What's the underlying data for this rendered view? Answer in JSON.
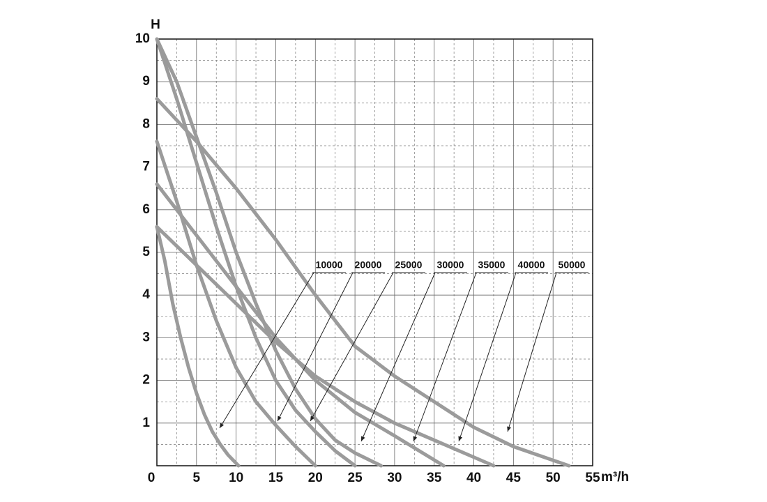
{
  "chart_data": {
    "type": "line",
    "y_label": "H",
    "x_label": "m³/h",
    "xlim": [
      0,
      55
    ],
    "ylim": [
      0,
      10
    ],
    "xticks": [
      0,
      5,
      10,
      15,
      20,
      25,
      30,
      35,
      40,
      45,
      50,
      55
    ],
    "yticks": [
      0,
      1,
      2,
      3,
      4,
      5,
      6,
      7,
      8,
      9,
      10
    ],
    "grid": true,
    "color": "#9b9b9b",
    "series": [
      {
        "name": "10000",
        "x": [
          0,
          1,
          2,
          3,
          4,
          5,
          6,
          7,
          8,
          9,
          10.3
        ],
        "values": [
          5.6,
          4.8,
          3.8,
          3.0,
          2.3,
          1.7,
          1.2,
          0.8,
          0.5,
          0.25,
          0
        ]
      },
      {
        "name": "20000",
        "x": [
          0,
          2.5,
          5,
          7.5,
          10,
          12.5,
          15,
          17.5,
          20
        ],
        "values": [
          7.6,
          6.2,
          4.7,
          3.4,
          2.3,
          1.5,
          0.95,
          0.45,
          0
        ]
      },
      {
        "name": "25000",
        "x": [
          0,
          2.5,
          5,
          7.5,
          10,
          12.5,
          15,
          17.5,
          20,
          22.5,
          25
        ],
        "values": [
          10,
          8.6,
          7.1,
          5.6,
          4.2,
          3.0,
          2.0,
          1.3,
          0.8,
          0.35,
          0
        ]
      },
      {
        "name": "30000",
        "x": [
          0,
          2.5,
          5,
          7.5,
          10,
          12.5,
          15,
          17.5,
          20,
          22.5,
          25,
          28.3
        ],
        "values": [
          10,
          9.0,
          7.7,
          6.4,
          5.0,
          3.8,
          2.7,
          1.8,
          1.1,
          0.6,
          0.3,
          0
        ]
      },
      {
        "name": "35000",
        "x": [
          0,
          5,
          10,
          15,
          20,
          25,
          30,
          36.2
        ],
        "values": [
          6.6,
          5.4,
          4.2,
          3.0,
          2.0,
          1.25,
          0.7,
          0
        ]
      },
      {
        "name": "40000",
        "x": [
          0,
          5,
          10,
          15,
          20,
          25,
          30,
          35,
          40,
          42.5
        ],
        "values": [
          5.6,
          4.7,
          3.8,
          2.9,
          2.1,
          1.5,
          1.0,
          0.6,
          0.2,
          0
        ]
      },
      {
        "name": "50000",
        "x": [
          0,
          5,
          10,
          15,
          20,
          25,
          30,
          35,
          40,
          45,
          52
        ],
        "values": [
          8.6,
          7.6,
          6.5,
          5.3,
          4.0,
          2.8,
          2.1,
          1.5,
          0.9,
          0.45,
          0
        ]
      }
    ]
  }
}
